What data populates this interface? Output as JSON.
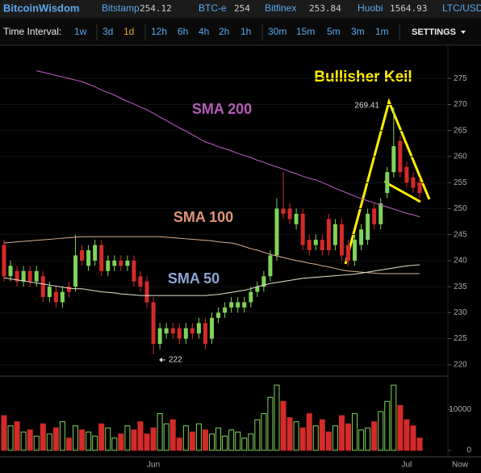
{
  "header": {
    "brand": "BitcoinWisdom",
    "tickers": [
      {
        "name": "Bitstamp",
        "price": "254.12"
      },
      {
        "name": "BTC-e",
        "price": "254"
      },
      {
        "name": "Bitfinex",
        "price": "253.84"
      },
      {
        "name": "Huobi",
        "price": "1564.93"
      }
    ],
    "pair": "LTC/USD"
  },
  "toolbar": {
    "label": "Time Interval:",
    "intervals": [
      "1w",
      "3d",
      "1d",
      "12h",
      "6h",
      "4h",
      "2h",
      "1h",
      "30m",
      "15m",
      "5m",
      "3m",
      "1m"
    ],
    "active": "1d",
    "settings": "SETTINGS"
  },
  "chart_data": {
    "type": "candlestick",
    "title": "Bullisher Keil",
    "categories": [
      null,
      null,
      null,
      null,
      null,
      null,
      null,
      null,
      null,
      null,
      null,
      null,
      null,
      null,
      null,
      null,
      null,
      null,
      null,
      null,
      null,
      null,
      null,
      "Jun",
      null,
      null,
      null,
      null,
      null,
      null,
      null,
      null,
      null,
      null,
      null,
      null,
      null,
      null,
      null,
      null,
      null,
      null,
      null,
      null,
      null,
      null,
      null,
      null,
      null,
      null,
      null,
      null,
      null,
      null,
      null,
      null,
      null,
      null,
      null,
      null,
      null,
      null,
      "Jul",
      null,
      null
    ],
    "now_label": "Now",
    "open": [
      243,
      237,
      238,
      236,
      238,
      236,
      237,
      233,
      234,
      232,
      235,
      235,
      242,
      239,
      240,
      243,
      238,
      239,
      240,
      239,
      240,
      237,
      236,
      232,
      224,
      226,
      227,
      227,
      225,
      227,
      226,
      228,
      225,
      229,
      230,
      231,
      231,
      231,
      232,
      234,
      235,
      237,
      241,
      250,
      250,
      247,
      249,
      244,
      243,
      244,
      248,
      243,
      247,
      243,
      240,
      243,
      244,
      250,
      247,
      253,
      257,
      263,
      258,
      256,
      255
    ],
    "high": [
      244,
      240,
      239,
      239,
      239,
      239,
      238,
      236,
      235,
      235,
      236,
      245,
      243,
      243,
      244,
      244,
      241,
      241,
      241,
      241,
      241,
      238,
      237,
      233,
      228,
      228,
      228,
      228,
      228,
      228,
      229,
      229,
      230,
      231,
      232,
      233,
      233,
      233,
      235,
      236,
      238,
      242,
      252,
      257,
      251,
      250,
      250,
      245,
      245,
      245,
      249,
      248,
      248,
      244,
      245,
      247,
      250,
      251,
      252,
      258,
      269.41,
      264,
      259,
      257,
      256
    ],
    "low": [
      236,
      236,
      235,
      235,
      235,
      235,
      232,
      232,
      231,
      231,
      233,
      234,
      239,
      238,
      239,
      237,
      237,
      238,
      238,
      238,
      235,
      234,
      231,
      222,
      223,
      225,
      225,
      224,
      224,
      225,
      225,
      223,
      224,
      228,
      229,
      230,
      230,
      230,
      231,
      233,
      234,
      236,
      240,
      248,
      247,
      246,
      242,
      241,
      242,
      241,
      241,
      242,
      240,
      239,
      239,
      242,
      243,
      246,
      246,
      252,
      256,
      256,
      254,
      253,
      252
    ],
    "close": [
      237,
      239,
      236,
      238,
      236,
      238,
      233,
      235,
      232,
      234,
      234,
      241,
      240,
      242,
      243,
      238,
      240,
      240,
      239,
      240,
      236,
      235,
      232,
      224,
      227,
      227,
      226,
      225,
      227,
      226,
      228,
      224,
      229,
      230,
      231,
      232,
      232,
      232,
      234,
      235,
      237,
      241,
      250,
      249,
      248,
      249,
      243,
      242,
      244,
      242,
      242,
      247,
      241,
      240,
      244,
      246,
      249,
      247,
      251,
      257,
      262,
      257,
      255,
      254,
      253
    ],
    "volume": [
      8500,
      6000,
      7000,
      4500,
      5000,
      3500,
      6500,
      4000,
      5500,
      7000,
      3000,
      6000,
      5000,
      4500,
      3500,
      6500,
      5500,
      3000,
      4000,
      6000,
      5000,
      7000,
      4000,
      5500,
      9000,
      6500,
      7500,
      3000,
      6000,
      4500,
      6500,
      5000,
      4000,
      5500,
      3500,
      5000,
      4500,
      3000,
      4000,
      7500,
      9000,
      13000,
      16000,
      12000,
      8000,
      7000,
      5500,
      9000,
      6000,
      7500,
      4500,
      6000,
      8500,
      6500,
      9000,
      5000,
      5500,
      7000,
      9500,
      12000,
      16000,
      11000,
      7500,
      6000,
      3000
    ],
    "up_color": "#7fd35a",
    "down_color": "#d42a2a",
    "sma": [
      {
        "name": "SMA 200",
        "color": "#c060c8",
        "label_color": "#b45cb8",
        "values": [
          null,
          null,
          null,
          null,
          null,
          276.5,
          276.2,
          275.9,
          275.6,
          275.3,
          275.0,
          274.7,
          274.4,
          273.9,
          273.4,
          272.8,
          272.3,
          271.8,
          271.2,
          270.6,
          270.1,
          269.5,
          269.0,
          268.3,
          267.6,
          266.9,
          266.2,
          265.5,
          264.9,
          264.2,
          263.5,
          262.8,
          262.4,
          261.9,
          261.5,
          261.1,
          260.6,
          260.2,
          259.8,
          259.3,
          258.9,
          258.4,
          258.0,
          257.6,
          257.1,
          256.7,
          256.2,
          255.8,
          255.5,
          255.0,
          254.5,
          253.9,
          253.4,
          252.9,
          252.4,
          251.9,
          251.5,
          251.1,
          250.7,
          250.3,
          249.9,
          249.5,
          249.1,
          248.8,
          248.4
        ]
      },
      {
        "name": "SMA 100",
        "color": "#d8b090",
        "label_color": "#e0957a",
        "values": [
          243.4,
          243.5,
          243.6,
          243.7,
          243.8,
          243.9,
          244.0,
          244.1,
          244.2,
          244.3,
          244.4,
          244.5,
          244.6,
          244.6,
          244.6,
          244.6,
          244.6,
          244.6,
          244.6,
          244.6,
          244.6,
          244.6,
          244.6,
          244.6,
          244.6,
          244.5,
          244.4,
          244.3,
          244.2,
          244.1,
          244.0,
          243.9,
          243.8,
          243.6,
          243.5,
          243.4,
          243.1,
          242.7,
          242.3,
          242.0,
          241.6,
          241.2,
          240.9,
          240.6,
          240.3,
          240.0,
          239.8,
          239.5,
          239.3,
          239.0,
          238.8,
          238.5,
          238.2,
          238.0,
          237.9,
          237.8,
          237.7,
          237.6,
          237.5,
          237.5,
          237.5,
          237.5,
          237.5,
          237.5,
          237.5
        ]
      },
      {
        "name": "SMA 50",
        "color": "#e6e6d0",
        "label_color": "#8fa5d8",
        "values": [
          236.7,
          236.5,
          236.3,
          236.1,
          235.9,
          235.7,
          235.5,
          235.3,
          235.1,
          234.9,
          234.7,
          234.6,
          234.6,
          234.4,
          234.2,
          234.0,
          233.9,
          233.8,
          233.6,
          233.5,
          233.4,
          233.3,
          233.3,
          233.3,
          233.3,
          233.3,
          233.3,
          233.3,
          233.3,
          233.3,
          233.3,
          233.3,
          233.4,
          233.5,
          233.7,
          233.9,
          234.1,
          234.3,
          234.6,
          235.0,
          235.3,
          235.6,
          235.8,
          236.0,
          236.2,
          236.4,
          236.6,
          236.7,
          236.8,
          236.9,
          237.0,
          237.1,
          237.2,
          237.3,
          237.4,
          237.6,
          237.8,
          238.0,
          238.2,
          238.4,
          238.6,
          238.8,
          239.0,
          239.1,
          239.2
        ]
      }
    ],
    "ylim": [
      217.8,
      281.4
    ],
    "yticks": [
      220,
      225,
      230,
      235,
      240,
      245,
      250,
      255,
      260,
      265,
      270,
      275
    ],
    "vlim": [
      -1600,
      18000
    ],
    "vticks": [
      0,
      10000
    ]
  }
}
